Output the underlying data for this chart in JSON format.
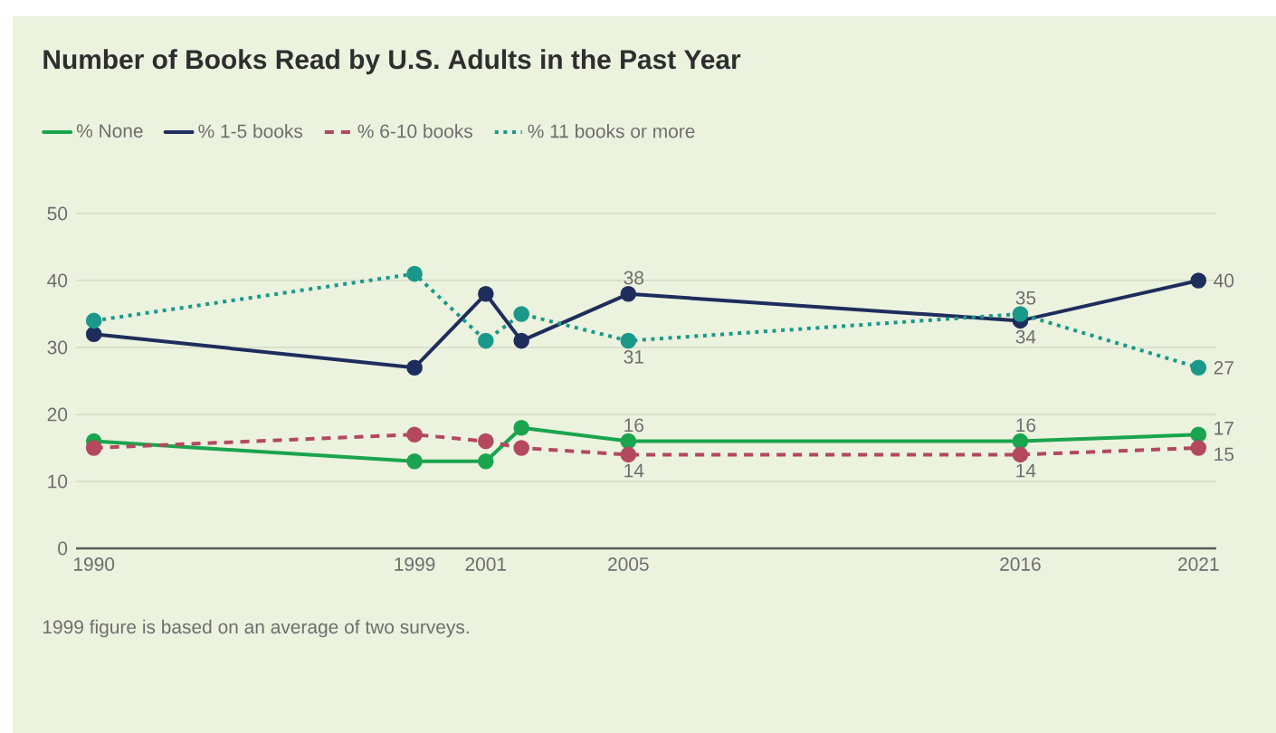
{
  "chart_data": {
    "type": "line",
    "title": "Number of Books Read by U.S. Adults in the Past Year",
    "annotations": [
      "1999 figure is based on an average of two surveys."
    ],
    "x": [
      1990,
      1999,
      2001,
      2002,
      2005,
      2016,
      2021
    ],
    "xlim": [
      1989.5,
      2021.5
    ],
    "xticks": [
      1990,
      1999,
      2001,
      2005,
      2016,
      2021
    ],
    "ylim": [
      0,
      50
    ],
    "yticks": [
      0,
      10,
      20,
      30,
      40,
      50
    ],
    "grid": "y",
    "legend": "top left",
    "marker": "circle",
    "series": [
      {
        "name": "% None",
        "color": "#1aa44e",
        "line_style": "solid",
        "values": [
          16,
          13,
          13,
          18,
          16,
          16,
          17
        ],
        "value_labels": [
          null,
          null,
          null,
          null,
          "16",
          "16",
          "17"
        ]
      },
      {
        "name": "% 1-5 books",
        "color": "#1e2d5c",
        "line_style": "solid",
        "values": [
          32,
          27,
          38,
          31,
          38,
          34,
          40
        ],
        "value_labels": [
          null,
          null,
          null,
          null,
          "38",
          "34",
          "40"
        ]
      },
      {
        "name": "% 6-10 books",
        "color": "#b3485f",
        "line_style": "dashed",
        "values": [
          15,
          17,
          16,
          15,
          14,
          14,
          15
        ],
        "value_labels": [
          null,
          null,
          null,
          null,
          "14",
          "14",
          "15"
        ]
      },
      {
        "name": "% 11 books or more",
        "color": "#1a998a",
        "line_style": "dotted",
        "values": [
          34,
          41,
          31,
          35,
          31,
          35,
          27
        ],
        "value_labels": [
          null,
          null,
          null,
          null,
          "31",
          "35",
          "27"
        ]
      }
    ]
  }
}
